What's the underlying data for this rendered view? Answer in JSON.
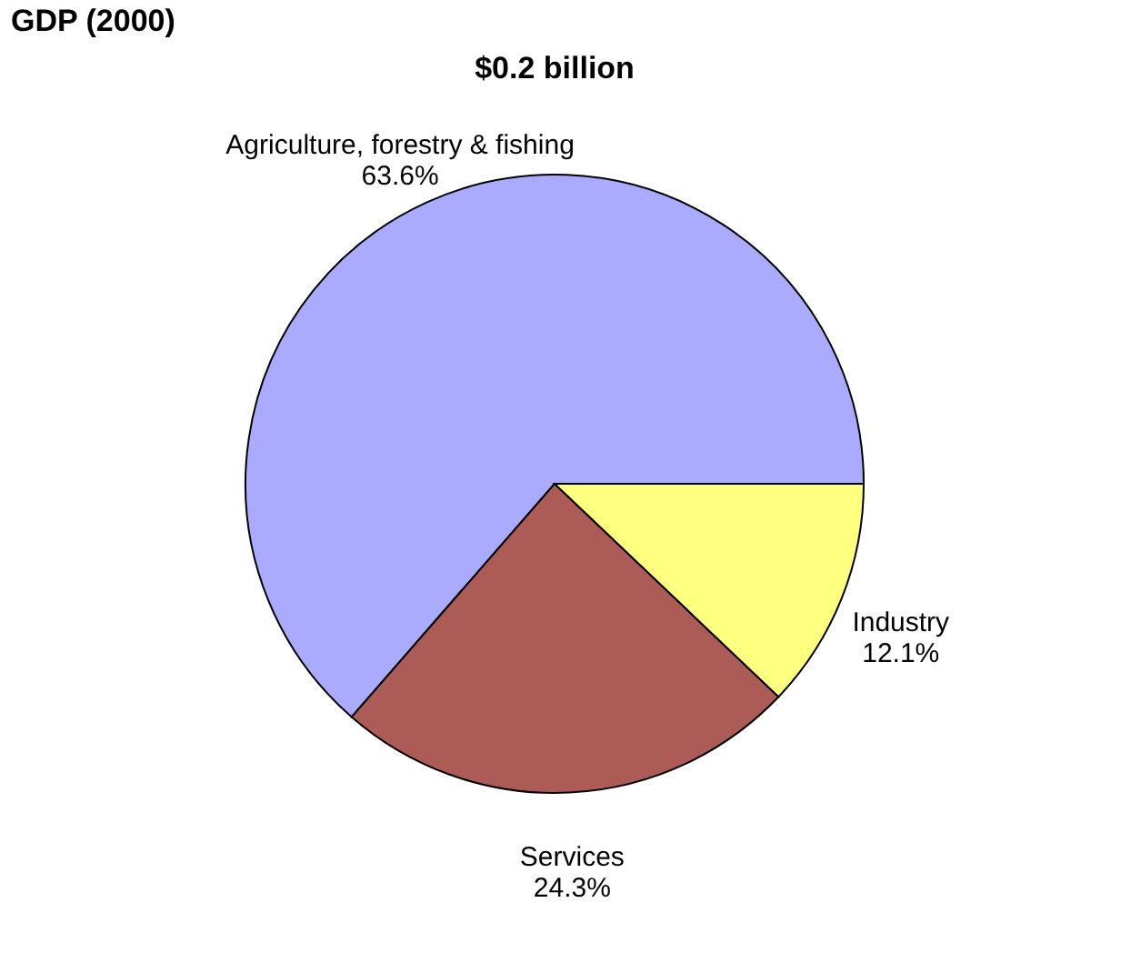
{
  "chart_data": {
    "type": "pie",
    "title": "GDP (2000)",
    "subtitle": "$0.2 billion",
    "categories": [
      "Agriculture, forestry & fishing",
      "Services",
      "Industry"
    ],
    "values": [
      63.6,
      24.3,
      12.1
    ],
    "value_labels": [
      "63.6%",
      "24.3%",
      "12.1%"
    ],
    "colors": [
      "#aaaaff",
      "#ad5b56",
      "#ffff80"
    ]
  }
}
